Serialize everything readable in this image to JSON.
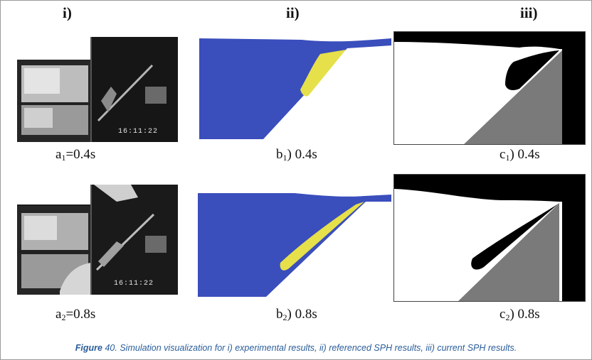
{
  "columns": [
    "i)",
    "ii)",
    "iii)"
  ],
  "timestamps": [
    "16:11:22",
    "16:11:22"
  ],
  "captions": {
    "a1": {
      "main": "a",
      "sub": "1",
      "rest": "=0.4s"
    },
    "b1": {
      "main": "b",
      "sub": "1",
      "rest": ") 0.4s"
    },
    "c1": {
      "main": "c",
      "sub": "1",
      "rest": ") 0.4s"
    },
    "a2": {
      "main": "a",
      "sub": "2",
      "rest": "=0.8s"
    },
    "b2": {
      "main": "b",
      "sub": "2",
      "rest": ") 0.8s"
    },
    "c2": {
      "main": "c",
      "sub": "2",
      "rest": ") 0.8s"
    }
  },
  "figure": {
    "label": "Figure",
    "number": "40",
    "text": ". Simulation visualization for i) experimental results, ii) referenced SPH results, iii) current SPH results."
  },
  "colors": {
    "fluid_blue": "#3a4ebc",
    "fluid_yellow": "#e6e04a",
    "ramp_gray": "#7a7a7a",
    "caption_blue": "#2a5d9a"
  }
}
